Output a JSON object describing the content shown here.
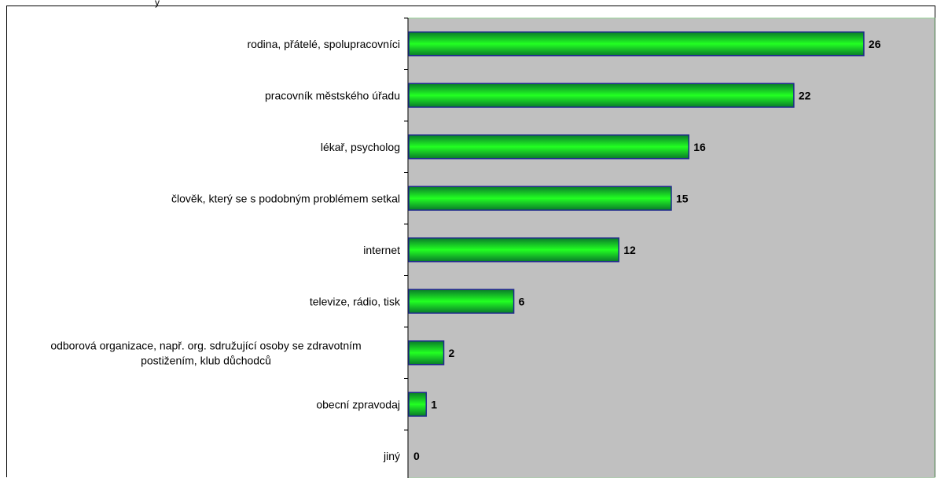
{
  "chart_data": {
    "type": "bar",
    "orientation": "horizontal",
    "title": "",
    "xlabel": "",
    "ylabel": "",
    "categories": [
      "rodina, přátelé, spolupracovníci",
      "pracovník městského úřadu",
      "lékař, psycholog",
      "člověk, který se s podobným problémem setkal",
      "internet",
      "televize, rádio, tisk",
      "odborová organizace, např. org. sdružující osoby se zdravotním postižením, klub důchodců",
      "obecní zpravodaj",
      "jiný"
    ],
    "category_lines": [
      [
        "rodina, přátelé, spolupracovníci"
      ],
      [
        "pracovník městského úřadu"
      ],
      [
        "lékař, psycholog"
      ],
      [
        "člověk, který se s podobným problémem setkal"
      ],
      [
        "internet"
      ],
      [
        "televize, rádio, tisk"
      ],
      [
        "odborová organizace, např. org. sdružující osoby se zdravotním",
        "postižením, klub důchodců"
      ],
      [
        "obecní zpravodaj"
      ],
      [
        "jiný"
      ]
    ],
    "values": [
      26,
      22,
      16,
      15,
      12,
      6,
      2,
      1,
      0
    ],
    "xlim": [
      0,
      30
    ],
    "grid": false,
    "legend": "none",
    "colors": {
      "plot_background": "#C0C0C0",
      "plot_border": "#9FD49F",
      "bar_edge": "#1F2A8C",
      "bar_fill_center": "#22FF22",
      "bar_fill_edge": "#0A7A2A",
      "axis": "#000000"
    }
  }
}
